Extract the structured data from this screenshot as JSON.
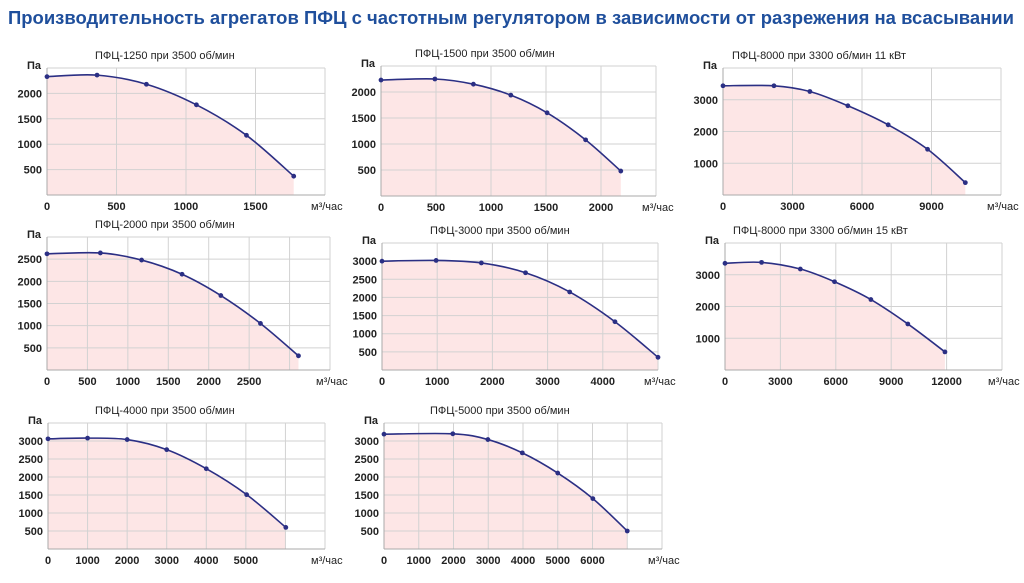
{
  "title": "Производительность агрегатов ПФЦ с частотным регулятором в зависимости от разрежения на всасывании",
  "colors": {
    "title": "#1f4f9c",
    "curve": "#2b2f84",
    "fill": "#fde6e6",
    "grid": "#d2d2d2"
  },
  "chart_data": [
    {
      "type": "area",
      "title": "ПФЦ-1250 при 3500 об/мин",
      "xlabel": "м³/час",
      "ylabel": "Па",
      "grid": true,
      "xlim": [
        0,
        2000
      ],
      "xstep": 500,
      "xticks": [
        "0",
        "500",
        "1000",
        "1500"
      ],
      "ylim": [
        0,
        2500
      ],
      "ystep": 500,
      "yticks": [
        "500",
        "1000",
        "1500",
        "2000"
      ],
      "x": [
        0,
        360,
        715,
        1075,
        1435,
        1775
      ],
      "y": [
        2330,
        2360,
        2180,
        1775,
        1175,
        370
      ]
    },
    {
      "type": "area",
      "title": "ПФЦ-1500 при 3500 об/мин",
      "xlabel": "м³/час",
      "ylabel": "Па",
      "grid": true,
      "xlim": [
        0,
        2500
      ],
      "xstep": 500,
      "xticks": [
        "0",
        "500",
        "1000",
        "1500",
        "2000"
      ],
      "ylim": [
        0,
        2500
      ],
      "ystep": 500,
      "yticks": [
        "500",
        "1000",
        "1500",
        "2000"
      ],
      "x": [
        0,
        490,
        840,
        1180,
        1510,
        1860,
        2180
      ],
      "y": [
        2230,
        2250,
        2150,
        1940,
        1600,
        1080,
        480
      ]
    },
    {
      "type": "area",
      "title": "ПФЦ-8000 при 3300 об/мин 11 кВт",
      "xlabel": "м³/час",
      "ylabel": "Па",
      "grid": true,
      "xlim": [
        0,
        12000
      ],
      "xstep": 3000,
      "xticks": [
        "0",
        "3000",
        "6000",
        "9000"
      ],
      "ylim": [
        0,
        4000
      ],
      "ystep": 1000,
      "yticks": [
        "1000",
        "2000",
        "3000"
      ],
      "x": [
        0,
        2200,
        3750,
        5390,
        7130,
        8830,
        10460
      ],
      "y": [
        3440,
        3440,
        3260,
        2810,
        2210,
        1440,
        390
      ]
    },
    {
      "type": "area",
      "title": "ПФЦ-2000 при 3500 об/мин",
      "xlabel": "м³/час",
      "ylabel": "Па",
      "grid": true,
      "xlim": [
        0,
        3500
      ],
      "xstep": 500,
      "xticks": [
        "0",
        "500",
        "1000",
        "1500",
        "2000",
        "2500"
      ],
      "ylim": [
        0,
        3000
      ],
      "ystep": 500,
      "yticks": [
        "500",
        "1000",
        "1500",
        "2000",
        "2500"
      ],
      "x": [
        0,
        660,
        1170,
        1670,
        2150,
        2640,
        3110
      ],
      "y": [
        2620,
        2640,
        2480,
        2160,
        1680,
        1050,
        320
      ]
    },
    {
      "type": "area",
      "title": "ПФЦ-3000 при 3500 об/мин",
      "xlabel": "м³/час",
      "ylabel": "Па",
      "grid": true,
      "xlim": [
        0,
        5000
      ],
      "xstep": 1000,
      "xticks": [
        "0",
        "1000",
        "2000",
        "3000",
        "4000"
      ],
      "ylim": [
        0,
        3500
      ],
      "ystep": 500,
      "yticks": [
        "500",
        "1000",
        "1500",
        "2000",
        "2500",
        "3000"
      ],
      "x": [
        0,
        980,
        1800,
        2600,
        3400,
        4220,
        5000
      ],
      "y": [
        3000,
        3020,
        2950,
        2680,
        2150,
        1330,
        350
      ]
    },
    {
      "type": "area",
      "title": "ПФЦ-8000 при 3300 об/мин 15 кВт",
      "xlabel": "м³/час",
      "ylabel": "Па",
      "grid": true,
      "xlim": [
        0,
        15000
      ],
      "xstep": 3000,
      "xticks": [
        "0",
        "3000",
        "6000",
        "9000",
        "12000"
      ],
      "ylim": [
        0,
        4000
      ],
      "ystep": 1000,
      "yticks": [
        "1000",
        "2000",
        "3000"
      ],
      "x": [
        0,
        1980,
        4080,
        5930,
        7900,
        9900,
        11910
      ],
      "y": [
        3360,
        3390,
        3180,
        2780,
        2220,
        1450,
        570
      ]
    },
    {
      "type": "area",
      "title": "ПФЦ-4000 при 3500 об/мин",
      "xlabel": "м³/час",
      "ylabel": "Па",
      "grid": true,
      "xlim": [
        0,
        7000
      ],
      "xstep": 1000,
      "xticks": [
        "0",
        "1000",
        "2000",
        "3000",
        "4000",
        "5000"
      ],
      "ylim": [
        0,
        3500
      ],
      "ystep": 500,
      "yticks": [
        "500",
        "1000",
        "1500",
        "2000",
        "2500",
        "3000"
      ],
      "x": [
        0,
        1000,
        2000,
        3000,
        4000,
        5020,
        6010
      ],
      "y": [
        3060,
        3080,
        3040,
        2760,
        2230,
        1510,
        600
      ]
    },
    {
      "type": "area",
      "title": "ПФЦ-5000 при 3500 об/мин",
      "xlabel": "м³/час",
      "ylabel": "Па",
      "grid": true,
      "xlim": [
        0,
        8000
      ],
      "xstep": 1000,
      "xticks": [
        "0",
        "1000",
        "2000",
        "3000",
        "4000",
        "5000",
        "6000"
      ],
      "ylim": [
        0,
        3500
      ],
      "ystep": 500,
      "yticks": [
        "500",
        "1000",
        "1500",
        "2000",
        "2500",
        "3000"
      ],
      "x": [
        0,
        1980,
        2990,
        3980,
        5000,
        6010,
        7000
      ],
      "y": [
        3190,
        3200,
        3040,
        2670,
        2110,
        1400,
        500
      ]
    }
  ]
}
